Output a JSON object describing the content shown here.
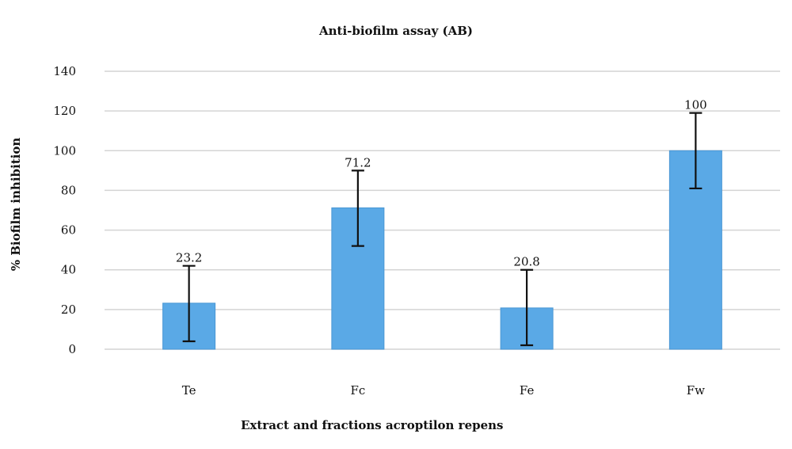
{
  "chart_data": {
    "type": "bar",
    "title": "Anti-biofilm assay (AB)",
    "xlabel": "Extract and fractions acroptilon repens",
    "ylabel": "% Biofilm inhibition",
    "categories": [
      "Te",
      "Fc",
      "Fe",
      "Fw"
    ],
    "values": [
      23.2,
      71.2,
      20.8,
      100
    ],
    "data_labels": [
      "23.2",
      "71.2",
      "20.8",
      "100"
    ],
    "error_bars": [
      {
        "low": 4,
        "high": 42
      },
      {
        "low": 52,
        "high": 90
      },
      {
        "low": 2,
        "high": 40
      },
      {
        "low": 81,
        "high": 119
      }
    ],
    "ylim": [
      0,
      140
    ],
    "yticks": [
      0,
      20,
      40,
      60,
      80,
      100,
      120,
      140
    ],
    "ytick_labels": [
      "0",
      "20",
      "40",
      "60",
      "80",
      "100",
      "120",
      "140"
    ],
    "grid": true,
    "legend": "none",
    "colors": {
      "bar": "#5aa9e6",
      "bar_edge": "#4a97d4",
      "grid": "#d4d4d4",
      "error": "#111111"
    }
  }
}
